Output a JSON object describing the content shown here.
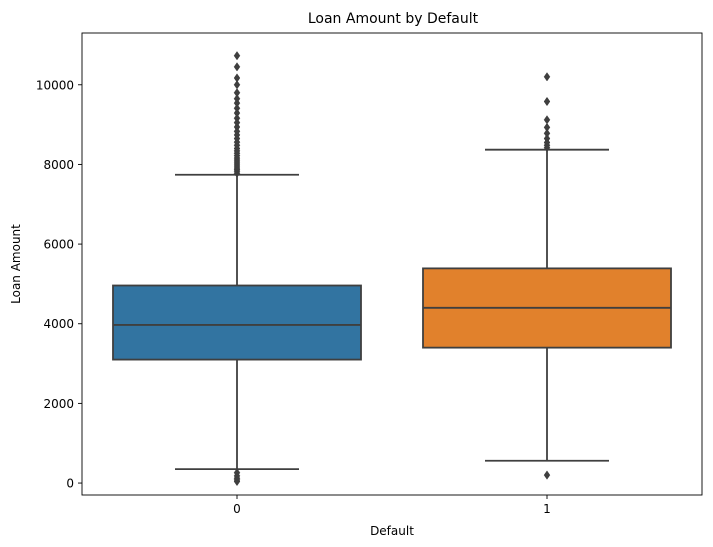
{
  "chart_data": {
    "type": "box",
    "title": "Loan Amount by Default",
    "xlabel": "Default",
    "ylabel": "Loan Amount",
    "categories": [
      "0",
      "1"
    ],
    "ylim": [
      -300,
      11300
    ],
    "yticks": [
      0,
      2000,
      4000,
      6000,
      8000,
      10000
    ],
    "grid": false,
    "boxes": [
      {
        "category": "0",
        "color": "#3274a1",
        "whisker_low": 350,
        "q1": 3100,
        "median": 3970,
        "q3": 4960,
        "whisker_high": 7740,
        "outliers": [
          40,
          80,
          120,
          180,
          260,
          7780,
          7830,
          7870,
          7910,
          7960,
          8010,
          8060,
          8110,
          8160,
          8220,
          8280,
          8340,
          8400,
          8480,
          8560,
          8650,
          8740,
          8830,
          8940,
          9050,
          9160,
          9290,
          9410,
          9540,
          9650,
          9800,
          10000,
          10170,
          10450,
          10730
        ]
      },
      {
        "category": "1",
        "color": "#e1812c",
        "whisker_low": 560,
        "q1": 3400,
        "median": 4400,
        "q3": 5390,
        "whisker_high": 8370,
        "outliers": [
          200,
          8420,
          8480,
          8550,
          8650,
          8780,
          8930,
          9120,
          9580,
          10200
        ]
      }
    ]
  }
}
